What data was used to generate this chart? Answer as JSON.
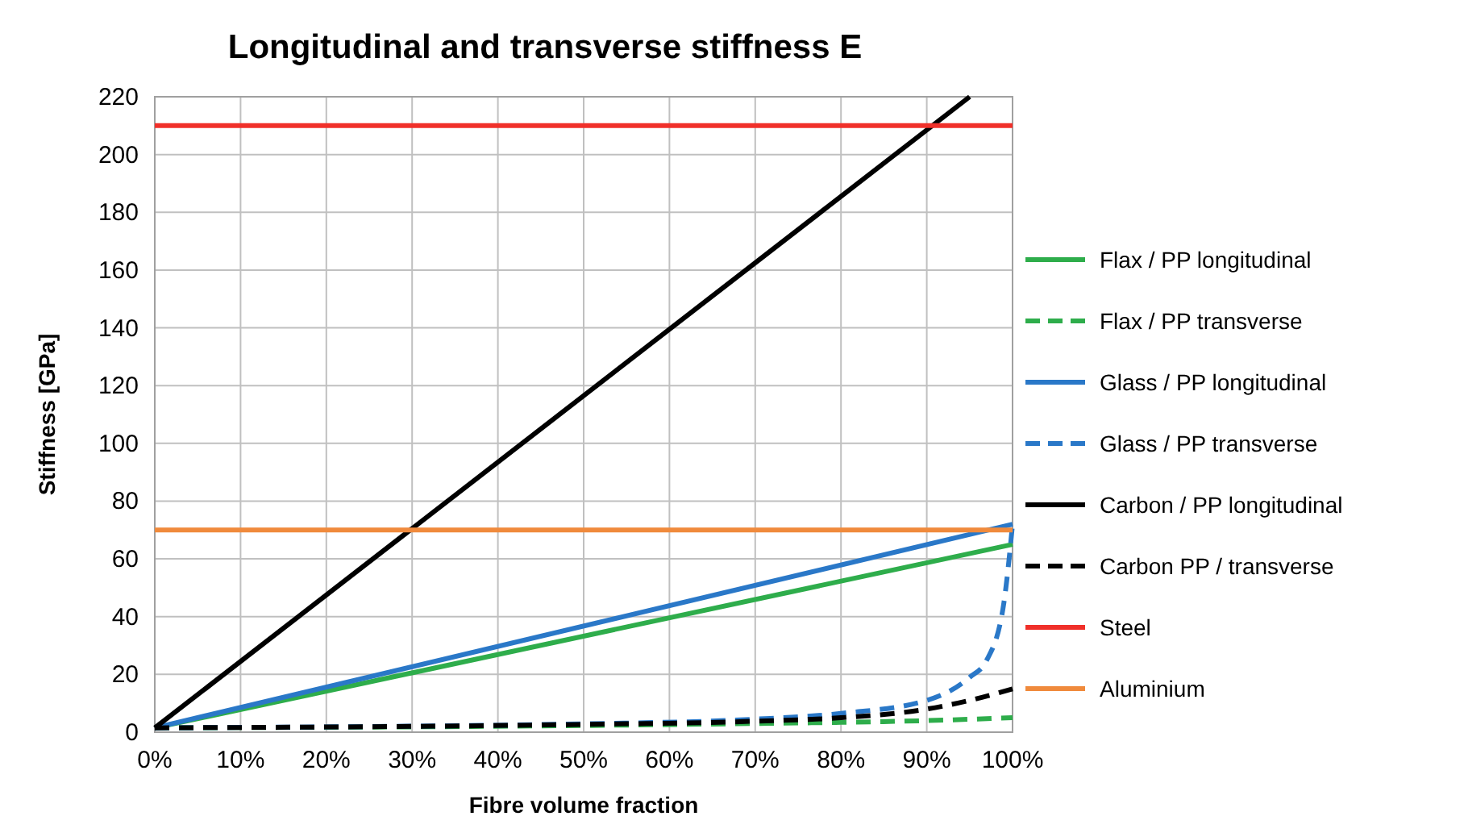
{
  "chart_data": {
    "type": "line",
    "title": "Longitudinal and transverse stiffness E",
    "xlabel": "Fibre volume fraction",
    "ylabel": "Stiffness [GPa]",
    "xlim": [
      0,
      100
    ],
    "xticks": [
      {
        "value": 0,
        "label": "0%"
      },
      {
        "value": 10,
        "label": "10%"
      },
      {
        "value": 20,
        "label": "20%"
      },
      {
        "value": 30,
        "label": "30%"
      },
      {
        "value": 40,
        "label": "40%"
      },
      {
        "value": 50,
        "label": "50%"
      },
      {
        "value": 60,
        "label": "60%"
      },
      {
        "value": 70,
        "label": "70%"
      },
      {
        "value": 80,
        "label": "80%"
      },
      {
        "value": 90,
        "label": "90%"
      },
      {
        "value": 100,
        "label": "100%"
      }
    ],
    "ylim": [
      0,
      220
    ],
    "yticks": [
      0,
      20,
      40,
      60,
      80,
      100,
      120,
      140,
      160,
      180,
      200,
      220
    ],
    "grid": true,
    "legend": "right",
    "series": [
      {
        "name": "Flax / PP longitudinal",
        "color": "#2ead4b",
        "line_style": "solid",
        "x": [
          0,
          100
        ],
        "values": [
          1.5,
          65
        ]
      },
      {
        "name": "Flax / PP transverse",
        "color": "#2ead4b",
        "line_style": "dashed",
        "x": [
          0,
          50,
          70,
          80,
          90,
          100
        ],
        "values": [
          1.5,
          2.3,
          3,
          3.4,
          4,
          5
        ]
      },
      {
        "name": "Glass / PP longitudinal",
        "color": "#2a78c8",
        "line_style": "solid",
        "x": [
          0,
          100
        ],
        "values": [
          1.5,
          72
        ]
      },
      {
        "name": "Glass / PP transverse",
        "color": "#2a78c8",
        "line_style": "dashed",
        "x": [
          0,
          50,
          70,
          80,
          90,
          95,
          97,
          99,
          100
        ],
        "values": [
          1.5,
          2.9,
          4.5,
          6.5,
          11,
          19,
          25,
          45,
          72
        ]
      },
      {
        "name": "Carbon / PP longitudinal",
        "color": "#000000",
        "line_style": "solid",
        "x": [
          0,
          95
        ],
        "values": [
          1.5,
          220
        ]
      },
      {
        "name": "Carbon PP / transverse",
        "color": "#000000",
        "line_style": "dashed",
        "x": [
          0,
          50,
          70,
          80,
          90,
          95,
          100
        ],
        "values": [
          1.5,
          2.7,
          3.8,
          5,
          8,
          11,
          15
        ]
      },
      {
        "name": "Steel",
        "color": "#f0302a",
        "line_style": "solid",
        "x": [
          0,
          100
        ],
        "values": [
          210,
          210
        ]
      },
      {
        "name": "Aluminium",
        "color": "#f08a3c",
        "line_style": "solid",
        "x": [
          0,
          100
        ],
        "values": [
          70,
          70
        ]
      }
    ]
  }
}
